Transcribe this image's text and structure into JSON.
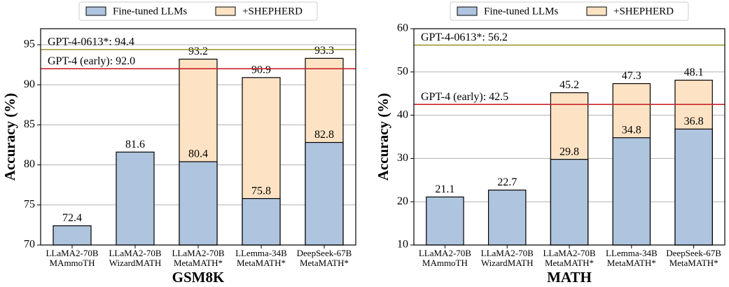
{
  "chart_data": [
    {
      "type": "bar",
      "xlabel": "GSM8K",
      "ylabel": "Accuracy (%)",
      "categories": [
        [
          "LLaMA2-70B",
          "MAmmoTH"
        ],
        [
          "LLaMA2-70B",
          "WizardMATH"
        ],
        [
          "LLaMA2-70B",
          "MetaMATH*"
        ],
        [
          "LLemma-34B",
          "MetaMATH*"
        ],
        [
          "DeepSeek-67B",
          "MetaMATH*"
        ]
      ],
      "series": [
        {
          "name": "+SHEPHERD",
          "color": "#fde3c4",
          "values": [
            null,
            null,
            93.2,
            90.9,
            93.3
          ]
        },
        {
          "name": "Fine-tuned LLMs",
          "color": "#afc4de",
          "values": [
            72.4,
            81.6,
            80.4,
            75.8,
            82.8
          ]
        }
      ],
      "legend_order": [
        1,
        0
      ],
      "reference_lines": [
        {
          "value": 94.4,
          "label": "GPT-4-0613*: 94.4",
          "color": "#9a9a28"
        },
        {
          "value": 92.0,
          "label": "GPT-4 (early): 92.0",
          "color": "#c8252c"
        }
      ],
      "ylim": [
        70,
        97
      ],
      "yticks": [
        70,
        75,
        80,
        85,
        90,
        95
      ],
      "grid": true
    },
    {
      "type": "bar",
      "xlabel": "MATH",
      "ylabel": "Accuracy (%)",
      "categories": [
        [
          "LLaMA2-70B",
          "MAmmoTH"
        ],
        [
          "LLaMA2-70B",
          "WizardMATH"
        ],
        [
          "LLaMA2-70B",
          "MetaMATH*"
        ],
        [
          "LLemma-34B",
          "MetaMATH*"
        ],
        [
          "DeepSeek-67B",
          "MetaMATH*"
        ]
      ],
      "series": [
        {
          "name": "+SHEPHERD",
          "color": "#fde3c4",
          "values": [
            null,
            null,
            45.2,
            47.3,
            48.1
          ]
        },
        {
          "name": "Fine-tuned LLMs",
          "color": "#afc4de",
          "values": [
            21.1,
            22.7,
            29.8,
            34.8,
            36.8
          ]
        }
      ],
      "legend_order": [
        1,
        0
      ],
      "reference_lines": [
        {
          "value": 56.2,
          "label": "GPT-4-0613*: 56.2",
          "color": "#9a9a28"
        },
        {
          "value": 42.5,
          "label": "GPT-4 (early): 42.5",
          "color": "#c8252c"
        }
      ],
      "ylim": [
        10,
        60
      ],
      "yticks": [
        10,
        20,
        30,
        40,
        50,
        60
      ],
      "grid": true
    }
  ]
}
